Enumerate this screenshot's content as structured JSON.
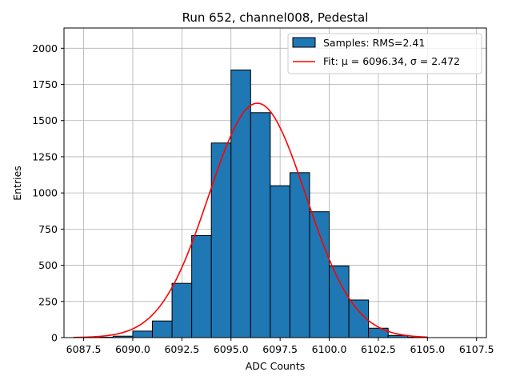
{
  "chart_data": {
    "type": "bar",
    "title": "Run 652, channel008, Pedestal",
    "xlabel": "ADC Counts",
    "ylabel": "Entries",
    "xlim": [
      6086.5,
      6108.0
    ],
    "ylim": [
      0,
      2140
    ],
    "grid": true,
    "legend_position": "top-right",
    "xticks": [
      6087.5,
      6090.0,
      6092.5,
      6095.0,
      6097.5,
      6100.0,
      6102.5,
      6105.0,
      6107.5
    ],
    "xtick_labels": [
      "6087.5",
      "6090.0",
      "6092.5",
      "6095.0",
      "6097.5",
      "6100.0",
      "6102.5",
      "6105.0",
      "6107.5"
    ],
    "yticks": [
      0,
      250,
      500,
      750,
      1000,
      1250,
      1500,
      1750,
      2000
    ],
    "ytick_labels": [
      "0",
      "250",
      "500",
      "750",
      "1000",
      "1250",
      "1500",
      "1750",
      "2000"
    ],
    "bin_edges": [
      6087,
      6089,
      6090,
      6091,
      6092,
      6093,
      6094,
      6095,
      6096,
      6097,
      6098,
      6099,
      6100,
      6101,
      6102,
      6103,
      6104,
      6105
    ],
    "counts": [
      3,
      10,
      45,
      115,
      375,
      705,
      1345,
      1850,
      1555,
      1050,
      1140,
      870,
      495,
      260,
      65,
      15,
      3
    ],
    "series": [
      {
        "name": "Samples: RMS=2.41",
        "kind": "histogram",
        "color": "#1f77b4",
        "edgecolor": "#000000"
      },
      {
        "name": "Fit: μ = 6096.34, σ = 2.472",
        "kind": "gaussian",
        "color": "#ff0000",
        "amplitude": 1620,
        "mu": 6096.34,
        "sigma": 2.472,
        "x_range": [
          6087,
          6105
        ]
      }
    ]
  }
}
